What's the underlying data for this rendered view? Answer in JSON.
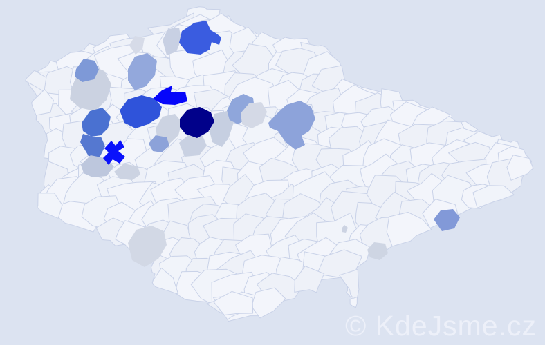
{
  "map": {
    "type": "choropleth-districts",
    "outside_color": "#dce3f1",
    "land_tints": [
      "#f1f4fa",
      "#eef1f8",
      "#f3f5fb"
    ],
    "border_color": "#c9d2e8",
    "palette": {
      "highest": "#01018a",
      "very_high": "#0707fa",
      "high": "#3458dc",
      "medium": "#4a71d1",
      "medium_light": "#8da3da",
      "low": "#c9d1e2",
      "very_low": "#d6dbe8",
      "none": "#f1f4fa"
    },
    "districts": [
      {
        "id": "d-nw-gray-large",
        "shade": "low",
        "color": "#cbd2e1"
      },
      {
        "id": "d-nw-medium",
        "shade": "medium_light",
        "color": "#7e99d7"
      },
      {
        "id": "d-n-light-small",
        "shade": "very_low",
        "color": "#d6dbe8"
      },
      {
        "id": "d-n-gray",
        "shade": "low",
        "color": "#c8d0e3"
      },
      {
        "id": "d-n-medium-light",
        "shade": "medium_light",
        "color": "#93a8dc"
      },
      {
        "id": "d-north-royal",
        "shade": "high",
        "color": "#3a5ce0"
      },
      {
        "id": "d-west-royal-large",
        "shade": "high",
        "color": "#2f53da"
      },
      {
        "id": "d-nw-bright-arrow",
        "shade": "very_high",
        "color": "#0606fa"
      },
      {
        "id": "d-center-gray",
        "shade": "low",
        "color": "#ccd3e2"
      },
      {
        "id": "d-center-light-sw",
        "shade": "low",
        "color": "#c9d1e2"
      },
      {
        "id": "d-center-light-e",
        "shade": "low",
        "color": "#c6cfe1"
      },
      {
        "id": "d-center-navy",
        "shade": "highest",
        "color": "#01018a"
      },
      {
        "id": "d-center-medium-s",
        "shade": "medium_light",
        "color": "#8ca2d9"
      },
      {
        "id": "d-west-medium-upper",
        "shade": "medium",
        "color": "#4a71d1"
      },
      {
        "id": "d-west-medium-lower",
        "shade": "medium",
        "color": "#5578d0"
      },
      {
        "id": "d-sw-light-1",
        "shade": "low",
        "color": "#bdc7dd"
      },
      {
        "id": "d-sw-light-2",
        "shade": "low",
        "color": "#ccd3e2"
      },
      {
        "id": "d-west-bright-star",
        "shade": "very_high",
        "color": "#0a12fb"
      },
      {
        "id": "d-ne-medium-light",
        "shade": "medium_light",
        "color": "#8fa6db"
      },
      {
        "id": "d-ne-gray",
        "shade": "very_low",
        "color": "#d4d9e6"
      },
      {
        "id": "d-e-medium-large",
        "shade": "medium_light",
        "color": "#8da3da"
      },
      {
        "id": "d-south-gray",
        "shade": "very_low",
        "color": "#d2d8e5"
      },
      {
        "id": "d-se-tiny-gray",
        "shade": "low",
        "color": "#ccd3e2"
      },
      {
        "id": "d-se-gray",
        "shade": "low",
        "color": "#ced5e3"
      },
      {
        "id": "d-far-east-medium",
        "shade": "medium_light",
        "color": "#8299d8"
      }
    ]
  },
  "watermark": {
    "text": "© KdeJsme.cz",
    "color": "#edf0f9"
  }
}
